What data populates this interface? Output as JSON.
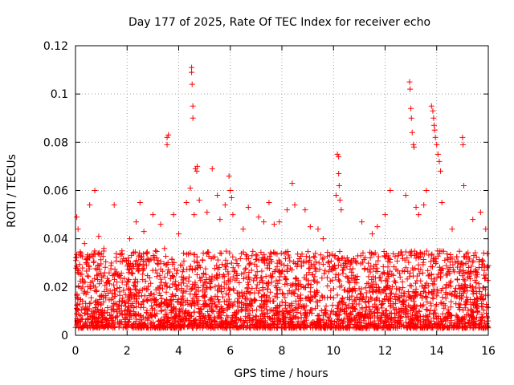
{
  "chart_data": {
    "type": "scatter",
    "title": "Day 177 of 2025, Rate Of TEC Index for receiver echo",
    "xlabel": "GPS time / hours",
    "ylabel": "ROTI / TECUs",
    "xlim": [
      0,
      16
    ],
    "ylim": [
      0,
      0.12
    ],
    "xticks": [
      0,
      2,
      4,
      6,
      8,
      10,
      12,
      14,
      16
    ],
    "xtick_labels": [
      "0",
      "2",
      "4",
      "6",
      "8",
      "10",
      "12",
      "14",
      "16"
    ],
    "yticks": [
      0,
      0.02,
      0.04,
      0.06,
      0.08,
      0.1,
      0.12
    ],
    "ytick_labels": [
      "0",
      "0.02",
      "0.04",
      "0.06",
      "0.08",
      "0.1",
      "0.12"
    ],
    "grid": true,
    "marker": "+",
    "marker_color": "#ff0000",
    "series": [
      {
        "name": "ROTI",
        "dense_band": {
          "x_range": [
            0,
            16
          ],
          "typical_max": 0.035,
          "typical_min": 0.003,
          "count": 3200
        },
        "x": [
          0.05,
          0.1,
          0.2,
          0.35,
          0.55,
          0.75,
          0.9,
          1.1,
          1.5,
          1.8,
          2.1,
          2.35,
          2.5,
          2.65,
          3.0,
          3.1,
          3.3,
          3.45,
          3.55,
          3.55,
          3.6,
          3.8,
          4.0,
          4.3,
          4.45,
          4.5,
          4.5,
          4.52,
          4.55,
          4.55,
          4.6,
          4.65,
          4.7,
          4.72,
          4.8,
          5.1,
          5.3,
          5.5,
          5.6,
          5.8,
          5.95,
          6.0,
          6.05,
          6.1,
          6.5,
          6.7,
          7.1,
          7.3,
          7.5,
          7.7,
          7.9,
          8.2,
          8.4,
          8.5,
          8.9,
          9.1,
          9.4,
          9.6,
          10.1,
          10.15,
          10.2,
          10.2,
          10.22,
          10.25,
          10.3,
          11.1,
          11.5,
          11.7,
          12.0,
          12.2,
          12.8,
          12.95,
          12.97,
          13.0,
          13.02,
          13.05,
          13.1,
          13.12,
          13.2,
          13.3,
          13.5,
          13.6,
          13.8,
          13.85,
          13.88,
          13.9,
          13.92,
          13.95,
          14.0,
          14.05,
          14.1,
          14.15,
          14.2,
          14.6,
          15.0,
          15.02,
          15.05,
          15.4,
          15.7,
          15.9
        ],
        "y": [
          0.049,
          0.044,
          0.033,
          0.038,
          0.054,
          0.06,
          0.041,
          0.036,
          0.054,
          0.035,
          0.04,
          0.047,
          0.055,
          0.043,
          0.05,
          0.035,
          0.046,
          0.036,
          0.082,
          0.079,
          0.083,
          0.05,
          0.042,
          0.055,
          0.061,
          0.111,
          0.109,
          0.104,
          0.095,
          0.09,
          0.05,
          0.069,
          0.068,
          0.07,
          0.056,
          0.051,
          0.069,
          0.058,
          0.048,
          0.054,
          0.066,
          0.06,
          0.057,
          0.05,
          0.044,
          0.053,
          0.049,
          0.047,
          0.055,
          0.046,
          0.047,
          0.052,
          0.063,
          0.054,
          0.052,
          0.045,
          0.044,
          0.04,
          0.058,
          0.075,
          0.074,
          0.067,
          0.062,
          0.056,
          0.052,
          0.047,
          0.042,
          0.045,
          0.05,
          0.06,
          0.058,
          0.105,
          0.102,
          0.094,
          0.09,
          0.084,
          0.079,
          0.078,
          0.053,
          0.05,
          0.054,
          0.06,
          0.095,
          0.093,
          0.09,
          0.087,
          0.085,
          0.082,
          0.079,
          0.075,
          0.072,
          0.068,
          0.055,
          0.044,
          0.082,
          0.079,
          0.062,
          0.048,
          0.051,
          0.044
        ]
      }
    ]
  }
}
